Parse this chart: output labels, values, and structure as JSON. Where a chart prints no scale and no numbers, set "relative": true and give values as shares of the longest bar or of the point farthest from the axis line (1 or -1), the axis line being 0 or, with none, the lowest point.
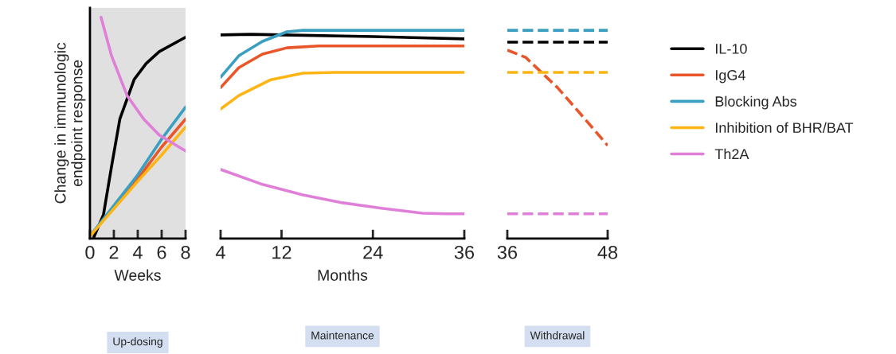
{
  "chart_data": [
    {
      "type": "line",
      "relative": true,
      "ylabel": "Change in immunologic\nendpoint response",
      "xlabel": "Weeks",
      "xlim": [
        0,
        8
      ],
      "xticks": [
        0,
        2,
        4,
        6,
        8
      ],
      "grid": false,
      "legend": "right",
      "bands": [
        {
          "axis": "x",
          "from": 0,
          "to": 8,
          "color": "#e0e0e0"
        }
      ],
      "annotations": [
        "Up-dosing"
      ],
      "series": [
        {
          "name": "IL-10",
          "color": "#000000",
          "x": [
            0.33,
            1.13,
            1.8,
            2.5,
            3.7,
            4.7,
            5.8,
            8
          ],
          "values": [
            0.007,
            0.108,
            0.324,
            0.54,
            0.719,
            0.791,
            0.845,
            0.91
          ]
        },
        {
          "name": "IgG4",
          "color": "#e8562a",
          "x": [
            0,
            4,
            6,
            8
          ],
          "values": [
            0.011,
            0.27,
            0.414,
            0.54
          ]
        },
        {
          "name": "Blocking Abs",
          "color": "#3a9fc0",
          "x": [
            0,
            4,
            6,
            8
          ],
          "values": [
            0.011,
            0.288,
            0.45,
            0.594
          ]
        },
        {
          "name": "Inhibition of BHR/BAT",
          "color": "#fdb515",
          "x": [
            0,
            4,
            6,
            8
          ],
          "values": [
            0.011,
            0.259,
            0.378,
            0.504
          ]
        },
        {
          "name": "Th2A",
          "color": "#e07fd8",
          "x": [
            0.93,
            1.8,
            3.1,
            4.5,
            5.8,
            8
          ],
          "values": [
            1.0,
            0.827,
            0.647,
            0.54,
            0.468,
            0.396
          ]
        }
      ]
    },
    {
      "type": "line",
      "relative": true,
      "xlabel": "Months",
      "xlim": [
        4,
        36
      ],
      "xticks": [
        4,
        12,
        24,
        36
      ],
      "grid": false,
      "annotations": [
        "Maintenance"
      ],
      "series": [
        {
          "color": "#000000",
          "x": [
            4,
            8,
            12,
            24,
            36
          ],
          "values": [
            0.978,
            0.981,
            0.978,
            0.97,
            0.959
          ]
        },
        {
          "color": "#e8562a",
          "x": [
            4,
            6.4,
            9.5,
            12.7,
            16.9,
            36
          ],
          "values": [
            0.725,
            0.821,
            0.886,
            0.916,
            0.925,
            0.925
          ]
        },
        {
          "color": "#3a9fc0",
          "x": [
            4,
            6.4,
            9.5,
            12.7,
            14.8,
            36
          ],
          "values": [
            0.775,
            0.878,
            0.947,
            0.993,
            1.0,
            1.0
          ]
        },
        {
          "color": "#fdb515",
          "x": [
            4,
            6.4,
            10.6,
            14.8,
            19,
            36
          ],
          "values": [
            0.622,
            0.687,
            0.763,
            0.794,
            0.798,
            0.798
          ]
        },
        {
          "color": "#e07fd8",
          "x": [
            4,
            9.5,
            14.8,
            20,
            25.3,
            30.5,
            33.6,
            36
          ],
          "values": [
            0.332,
            0.26,
            0.21,
            0.172,
            0.145,
            0.122,
            0.119,
            0.119
          ]
        }
      ]
    },
    {
      "type": "line",
      "relative": true,
      "xlim": [
        36,
        48
      ],
      "xticks": [
        36,
        48
      ],
      "grid": false,
      "line_style": "dashed",
      "annotations": [
        "Withdrawal"
      ],
      "series": [
        {
          "color": "#000000",
          "x": [
            36,
            48
          ],
          "values": [
            0.943,
            0.943
          ]
        },
        {
          "color": "#e8562a",
          "x": [
            36,
            38.2,
            42,
            44.9,
            48
          ],
          "values": [
            0.905,
            0.87,
            0.725,
            0.592,
            0.447
          ]
        },
        {
          "color": "#3a9fc0",
          "x": [
            36,
            48
          ],
          "values": [
            1.0,
            1.0
          ]
        },
        {
          "color": "#fdb515",
          "x": [
            36,
            48
          ],
          "values": [
            0.798,
            0.798
          ]
        },
        {
          "color": "#e07fd8",
          "x": [
            36,
            48
          ],
          "values": [
            0.119,
            0.119
          ]
        }
      ]
    }
  ]
}
